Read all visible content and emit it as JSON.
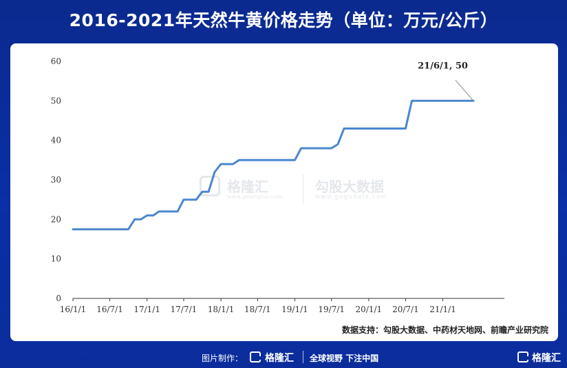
{
  "title": "2016-2021年天然牛黄价格走势（单位：万元/公斤）",
  "source": "数据支持：勾股大数据、中药材天地网、前瞻产业研究院",
  "watermark": {
    "name_left": "格隆汇",
    "url_left": "www.gelonghui.com",
    "name_right": "勾股大数据",
    "url_right": "www.gogudata.com"
  },
  "footer": {
    "made_by": "图片制作：",
    "brand": "格隆汇",
    "slogan": "全球视野 下注中国",
    "brand_right": "格隆汇"
  },
  "colors": {
    "line": "#4a86cf",
    "background": "#0b2d9c",
    "axis": "#333333"
  },
  "chart_data": {
    "type": "line",
    "x_ticks": [
      "16/1/1",
      "16/7/1",
      "17/1/1",
      "17/7/1",
      "18/1/1",
      "18/7/1",
      "19/1/1",
      "19/7/1",
      "20/1/1",
      "20/7/1",
      "21/1/1"
    ],
    "y_ticks": [
      "0",
      "10",
      "20",
      "30",
      "40",
      "50",
      "60"
    ],
    "ylim": [
      0,
      60
    ],
    "xlim": [
      "2016-01-01",
      "2021-11-01"
    ],
    "grid": false,
    "series": [
      {
        "x": [
          "2016-01-01",
          "2016-10-01",
          "2016-11-01",
          "2016-12-01",
          "2017-01-01",
          "2017-02-01",
          "2017-03-01",
          "2017-04-01",
          "2017-05-01",
          "2017-06-01",
          "2017-07-01",
          "2017-08-01",
          "2017-09-01",
          "2017-10-01",
          "2017-11-01",
          "2017-12-01",
          "2018-01-01",
          "2018-03-01",
          "2018-04-01",
          "2019-01-01",
          "2019-02-01",
          "2019-07-01",
          "2019-08-01",
          "2019-09-01",
          "2020-07-01",
          "2020-08-01",
          "2021-06-01"
        ],
        "values": [
          17.5,
          17.5,
          20,
          20,
          21,
          21,
          22,
          22,
          22,
          22,
          25,
          25,
          25,
          27,
          27,
          32,
          34,
          34,
          35,
          35,
          38,
          38,
          39,
          43,
          43,
          50,
          50
        ]
      }
    ],
    "annotation": {
      "x": "2021-06-01",
      "y": 50,
      "text": "21/6/1, 50"
    }
  }
}
